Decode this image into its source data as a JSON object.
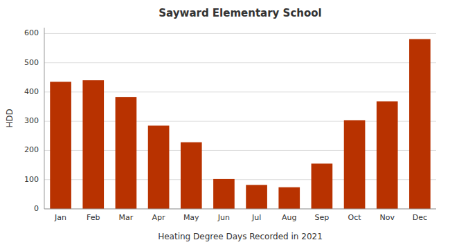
{
  "chart_data": {
    "type": "bar",
    "title": "Sayward Elementary School",
    "xlabel": "Heating Degree Days Recorded in 2021",
    "ylabel": "HDD",
    "categories": [
      "Jan",
      "Feb",
      "Mar",
      "Apr",
      "May",
      "Jun",
      "Jul",
      "Aug",
      "Sep",
      "Oct",
      "Nov",
      "Dec"
    ],
    "values": [
      435,
      440,
      383,
      285,
      228,
      102,
      82,
      74,
      155,
      303,
      368,
      581
    ],
    "color": "#b83200",
    "ylim": [
      0,
      620
    ],
    "yticks": [
      0,
      100,
      200,
      300,
      400,
      500,
      600
    ],
    "grid": true
  }
}
